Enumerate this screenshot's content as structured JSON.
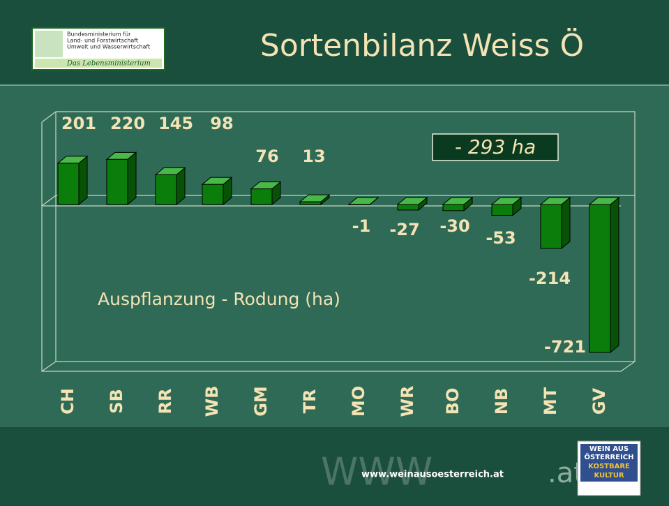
{
  "header": {
    "title": "Sortenbilanz Weiss Ö",
    "logo": [
      "Bundesministerium für",
      "Land- und Forstwirtschaft",
      "Umwelt und Wasserwirtschaft",
      "Das Lebensministerium"
    ]
  },
  "chart_data": {
    "type": "bar",
    "categories": [
      "CH",
      "SB",
      "RR",
      "WB",
      "GM",
      "TR",
      "MO",
      "WR",
      "BO",
      "NB",
      "MT",
      "GV"
    ],
    "values": [
      201,
      220,
      145,
      98,
      76,
      13,
      -1,
      -27,
      -30,
      -53,
      -214,
      -721
    ],
    "color": "#0b7d0b",
    "annotations": [
      "- 293 ha",
      "Auspflanzung - Rodung (ha)"
    ]
  },
  "footer": {
    "url": "www.weinausoesterreich.at",
    "badge": [
      "WEIN AUS",
      "ÖSTERREICH",
      "KOSTBARE",
      "KULTUR"
    ]
  }
}
